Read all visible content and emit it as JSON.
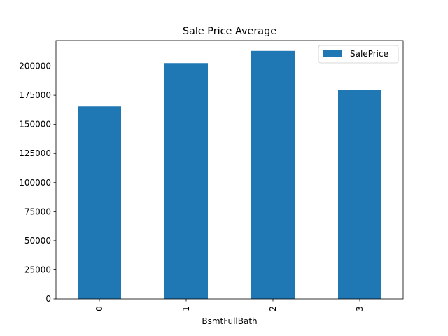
{
  "chart_data": {
    "type": "bar",
    "title": "Sale Price Average",
    "xlabel": "BsmtFullBath",
    "ylabel": "",
    "categories": [
      "0",
      "1",
      "2",
      "3"
    ],
    "series": [
      {
        "name": "SalePrice",
        "values": [
          165300,
          202600,
          213100,
          179300
        ],
        "color": "#1f77b4"
      }
    ],
    "ylim": [
      0,
      222000
    ],
    "yticks": [
      0,
      25000,
      50000,
      75000,
      100000,
      125000,
      150000,
      175000,
      200000
    ],
    "ytick_labels": [
      "0",
      "25000",
      "50000",
      "75000",
      "100000",
      "125000",
      "150000",
      "175000",
      "200000"
    ],
    "legend_position": "top-right",
    "grid": false
  }
}
